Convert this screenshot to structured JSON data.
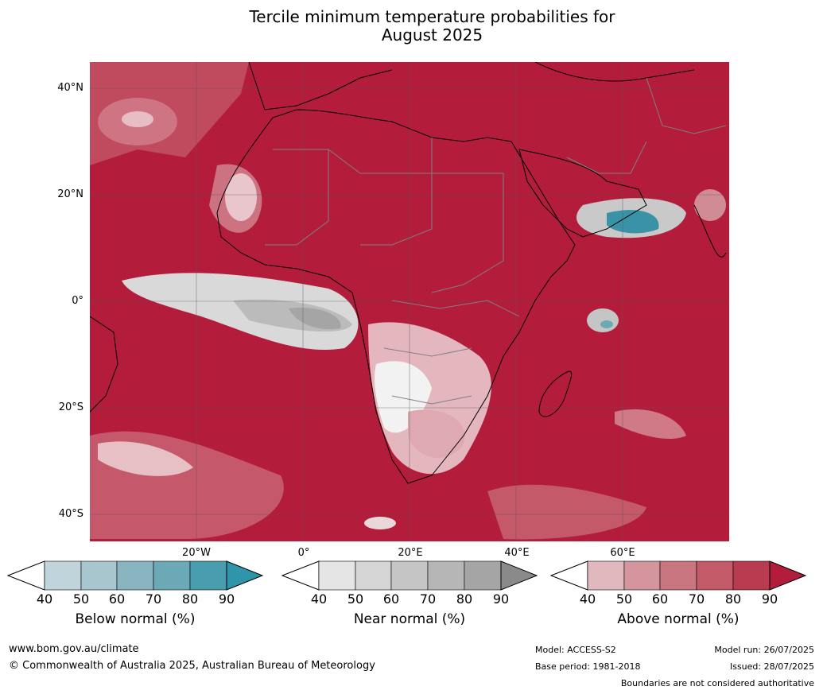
{
  "title_line1": "Tercile minimum temperature probabilities for",
  "title_line2": "August 2025",
  "lat_labels": [
    "40°N",
    "20°N",
    "0°",
    "20°S",
    "40°S"
  ],
  "lon_labels": [
    "20°W",
    "0°",
    "20°E",
    "40°E",
    "60°E"
  ],
  "colorbars": [
    {
      "label": "Below normal (%)",
      "ticks": [
        "40",
        "50",
        "60",
        "70",
        "80",
        "90"
      ],
      "colors": [
        "#bfd4db",
        "#a7c6cd",
        "#88b5bf",
        "#6aa9b5",
        "#4a9caf"
      ],
      "arrow_color": "#2f95aa"
    },
    {
      "label": "Near normal (%)",
      "ticks": [
        "40",
        "50",
        "60",
        "70",
        "80",
        "90"
      ],
      "colors": [
        "#e5e5e5",
        "#d5d5d5",
        "#c5c5c5",
        "#b6b6b6",
        "#a5a5a5"
      ],
      "arrow_color": "#8a8a8a"
    },
    {
      "label": "Above normal (%)",
      "ticks": [
        "40",
        "50",
        "60",
        "70",
        "80",
        "90"
      ],
      "colors": [
        "#e2b8bf",
        "#d5959e",
        "#c97680",
        "#c25a68",
        "#b83b4f"
      ],
      "arrow_color": "#b11d3b"
    }
  ],
  "footer": {
    "url": "www.bom.gov.au/climate",
    "copyright": "© Commonwealth of Australia 2025, Australian Bureau of Meteorology",
    "model": "Model: ACCESS-S2",
    "base_period": "Base period: 1981-2018",
    "model_run": "Model run: 26/07/2025",
    "issued": "Issued: 28/07/2025",
    "disclaimer": "Boundaries are not considered authoritative"
  },
  "map_colors": {
    "ocean_base": "#b31c3b",
    "land_base": "#b31c3b"
  }
}
